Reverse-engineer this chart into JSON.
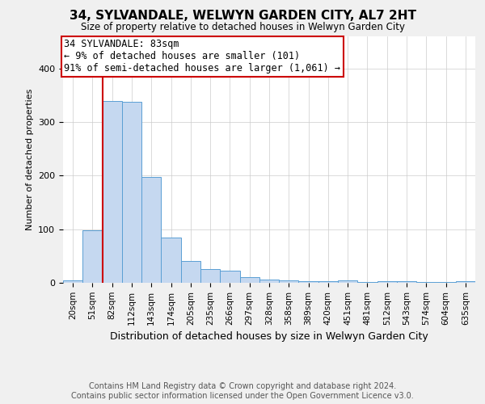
{
  "title": "34, SYLVANDALE, WELWYN GARDEN CITY, AL7 2HT",
  "subtitle": "Size of property relative to detached houses in Welwyn Garden City",
  "xlabel": "Distribution of detached houses by size in Welwyn Garden City",
  "ylabel": "Number of detached properties",
  "footnote1": "Contains HM Land Registry data © Crown copyright and database right 2024.",
  "footnote2": "Contains public sector information licensed under the Open Government Licence v3.0.",
  "categories": [
    "20sqm",
    "51sqm",
    "82sqm",
    "112sqm",
    "143sqm",
    "174sqm",
    "205sqm",
    "235sqm",
    "266sqm",
    "297sqm",
    "328sqm",
    "358sqm",
    "389sqm",
    "420sqm",
    "451sqm",
    "481sqm",
    "512sqm",
    "543sqm",
    "574sqm",
    "604sqm",
    "635sqm"
  ],
  "values": [
    5,
    98,
    340,
    338,
    197,
    84,
    41,
    25,
    23,
    10,
    6,
    5,
    3,
    3,
    5,
    2,
    3,
    3,
    1,
    2,
    3
  ],
  "bar_color": "#c5d8f0",
  "bar_edge_color": "#5a9fd4",
  "property_line_color": "#cc0000",
  "annotation_text": "34 SYLVANDALE: 83sqm\n← 9% of detached houses are smaller (101)\n91% of semi-detached houses are larger (1,061) →",
  "annotation_box_color": "#ffffff",
  "annotation_box_edge": "#cc0000",
  "ylim": [
    0,
    460
  ],
  "background_color": "#f0f0f0",
  "plot_background": "#ffffff",
  "title_fontsize": 11,
  "subtitle_fontsize": 8.5,
  "annotation_fontsize": 8.5,
  "ylabel_fontsize": 8,
  "xlabel_fontsize": 9,
  "footnote_fontsize": 7,
  "tick_fontsize": 7.5
}
